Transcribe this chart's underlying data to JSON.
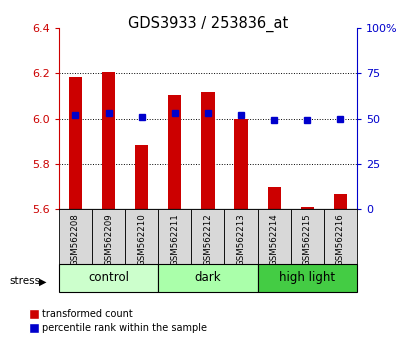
{
  "title": "GDS3933 / 253836_at",
  "samples": [
    "GSM562208",
    "GSM562209",
    "GSM562210",
    "GSM562211",
    "GSM562212",
    "GSM562213",
    "GSM562214",
    "GSM562215",
    "GSM562216"
  ],
  "red_values": [
    6.185,
    6.205,
    5.885,
    6.105,
    6.12,
    6.0,
    5.695,
    5.61,
    5.665
  ],
  "blue_values": [
    52,
    53,
    51,
    53,
    53,
    52,
    49,
    49,
    50
  ],
  "ylim_left": [
    5.6,
    6.4
  ],
  "ylim_right": [
    0,
    100
  ],
  "yticks_left": [
    5.6,
    5.8,
    6.0,
    6.2,
    6.4
  ],
  "yticks_right": [
    0,
    25,
    50,
    75,
    100
  ],
  "groups": [
    {
      "label": "control",
      "indices": [
        0,
        1,
        2
      ],
      "color": "#ccffcc"
    },
    {
      "label": "dark",
      "indices": [
        3,
        4,
        5
      ],
      "color": "#aaffaa"
    },
    {
      "label": "high light",
      "indices": [
        6,
        7,
        8
      ],
      "color": "#44cc44"
    }
  ],
  "stress_label": "stress",
  "bar_color": "#cc0000",
  "dot_color": "#0000cc",
  "bar_bottom": 5.6,
  "bar_width": 0.4,
  "legend_red": "transformed count",
  "legend_blue": "percentile rank within the sample",
  "bg_color": "#d8d8d8",
  "left_tick_color": "#cc0000",
  "right_tick_color": "#0000cc",
  "gridlines": [
    5.8,
    6.0,
    6.2
  ]
}
